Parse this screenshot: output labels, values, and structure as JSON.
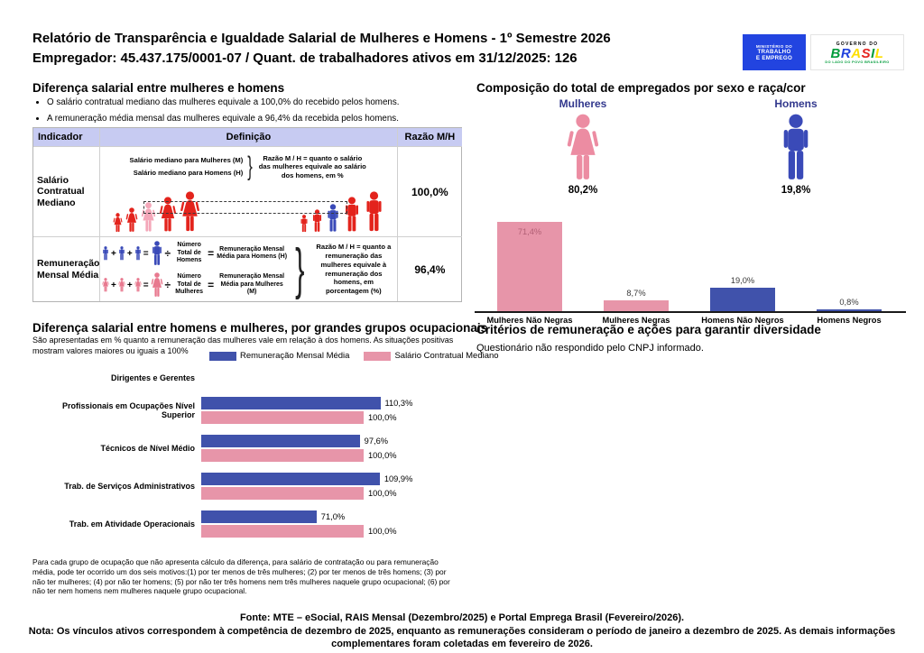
{
  "colors": {
    "pink": "#e795a9",
    "pink_light": "#f4a7b9",
    "blue": "#4052ab",
    "blue_icon": "#3a4ab8",
    "red": "#e3231c",
    "lavender_header": "#c7cbf2",
    "navy_label": "#32388d",
    "mte_blue": "#2244e0",
    "inside_bar_label": "#b26075"
  },
  "header": {
    "title": "Relatório de Transparência e Igualdade Salarial de Mulheres e Homens - 1º Semestre 2026",
    "subtitle": "Empregador: 45.437.175/0001-07 / Quant. de trabalhadores ativos em 31/12/2025: 126",
    "mte_logo_lines": [
      "MINISTÉRIO DO",
      "TRABALHO",
      "E EMPREGO"
    ],
    "brasil_logo": {
      "top": "GOVERNO DO",
      "letters": [
        {
          "ch": "B",
          "color": "#009c3b"
        },
        {
          "ch": "R",
          "color": "#1f41dd"
        },
        {
          "ch": "A",
          "color": "#fedf00"
        },
        {
          "ch": "S",
          "color": "#e52320"
        },
        {
          "ch": "I",
          "color": "#009c3b"
        },
        {
          "ch": "L",
          "color": "#fedf00"
        }
      ],
      "tagline": "DO LADO DO POVO BRASILEIRO"
    }
  },
  "salary_gap": {
    "title": "Diferença salarial entre mulheres e homens",
    "bullets": [
      "O salário contratual mediano das mulheres equivale a 100,0% do recebido pelos homens.",
      "A remuneração média mensal das mulheres equivale a 96,4% da recebida pelos homens."
    ],
    "table": {
      "headers": [
        "Indicador",
        "Definição",
        "Razão M/H"
      ],
      "row_median": {
        "indicator": "Salário Contratual Mediano",
        "line_women": "Salário mediano para Mulheres (M)",
        "line_men": "Salário mediano para Homens (H)",
        "note": "Razão M / H = quanto o salário das mulheres equivale ao salário dos homens, em %",
        "ratio": "100,0%"
      },
      "row_mean": {
        "indicator": "Remuneração Mensal Média",
        "men_divisor": "Número Total de Homens",
        "men_result": "Remuneração Mensal Média para Homens (H)",
        "women_divisor": "Número Total de Mulheres",
        "women_result": "Remuneração Mensal Média para Mulheres (M)",
        "note": "Razão M / H = quanto a remuneração das mulheres equivale à remuneração dos homens, em porcentagem (%)",
        "ratio": "96,4%"
      },
      "symbols": {
        "plus": "+",
        "equals": "=",
        "divide": "÷",
        "brace": "}"
      }
    }
  },
  "occupations": {
    "title": "Diferença salarial entre homens e mulheres, por grandes grupos ocupacionais",
    "subtitle": "São apresentadas em % quanto a remuneração das mulheres vale em relação à dos homens. As situações positivas mostram valores maiores ou iguais a 100%",
    "footnote": "Para cada grupo de ocupação que não apresenta cálculo da diferença, para salário de contratação ou para remuneração média, pode ter ocorrido um dos seis motivos:(1) por ter menos de três mulheres; (2) por ter menos de três homens; (3) por não ter mulheres; (4) por não ter homens; (5) por não ter três homens nem três mulheres naquele grupo ocupacional; (6) por não ter nem homens nem mulheres naquele grupo ocupacional."
  },
  "composition": {
    "title": "Composição do total de empregados por sexo e raça/cor",
    "female_label": "Mulheres",
    "female_pct": "80,2%",
    "male_label": "Homens",
    "male_pct": "19,8%"
  },
  "criteria": {
    "title": "Critérios de remuneração e ações para garantir diversidade",
    "text": "Questionário não respondido pelo CNPJ informado."
  },
  "footer": {
    "line1": "Fonte: MTE – eSocial, RAIS Mensal (Dezembro/2025) e Portal Emprega Brasil (Fevereiro/2026).",
    "line2": "Nota: Os vínculos ativos correspondem à competência de dezembro de 2025, enquanto as remunerações consideram o período de janeiro a dezembro de 2025. As demais informações complementares foram coletadas em fevereiro de 2026."
  },
  "chart_data": [
    {
      "type": "bar",
      "title": "Composição do total de empregados por sexo e raça/cor",
      "categories": [
        "Mulheres Não Negras",
        "Mulheres Negras",
        "Homens Não Negros",
        "Homens Negros"
      ],
      "values": [
        71.4,
        8.7,
        19.0,
        0.8
      ],
      "labels": [
        "71,4%",
        "8,7%",
        "19,0%",
        "0,8%"
      ],
      "bar_colors": [
        "#e795a9",
        "#e795a9",
        "#4052ab",
        "#4052ab"
      ],
      "label_inside": [
        true,
        false,
        false,
        false
      ],
      "group_totals": {
        "Mulheres": 80.2,
        "Homens": 19.8
      },
      "ylim": [
        0,
        80
      ],
      "grid": false,
      "legend_position": "none"
    },
    {
      "type": "bar",
      "orientation": "horizontal",
      "title": "Diferença salarial entre homens e mulheres, por grandes grupos ocupacionais",
      "categories": [
        "Dirigentes e Gerentes",
        "Profissionais em Ocupações Nível Superior",
        "Técnicos de Nível Médio",
        "Trab. de Serviços Administrativos",
        "Trab. em Atividade Operacionais"
      ],
      "series": [
        {
          "name": "Remuneração Mensal Média",
          "color": "#4052ab",
          "values": [
            null,
            110.3,
            97.6,
            109.9,
            71.0
          ],
          "labels": [
            "",
            "110,3%",
            "97,6%",
            "109,9%",
            "71,0%"
          ]
        },
        {
          "name": "Salário Contratual Mediano",
          "color": "#e795a9",
          "values": [
            null,
            100.0,
            100.0,
            100.0,
            100.0
          ],
          "labels": [
            "",
            "100,0%",
            "100,0%",
            "100,0%",
            "100,0%"
          ]
        }
      ],
      "xlim": [
        0,
        120
      ],
      "grid": false,
      "legend_position": "top"
    }
  ]
}
